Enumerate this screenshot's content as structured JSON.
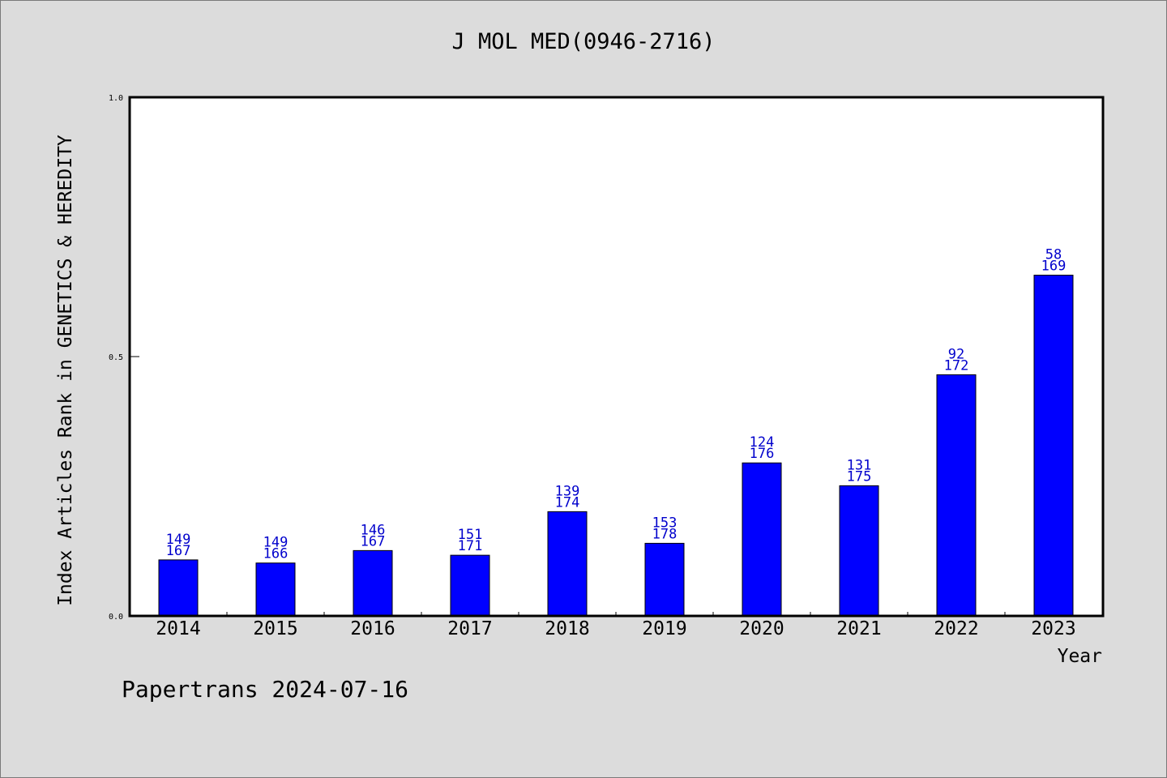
{
  "chart_data": {
    "type": "bar",
    "title": "J MOL MED(0946-2716)",
    "xlabel": "Year",
    "ylabel": "Index Articles Rank in GENETICS & HEREDITY",
    "categories": [
      "2014",
      "2015",
      "2016",
      "2017",
      "2018",
      "2019",
      "2020",
      "2021",
      "2022",
      "2023"
    ],
    "values": [
      0.108,
      0.102,
      0.126,
      0.117,
      0.201,
      0.14,
      0.295,
      0.251,
      0.465,
      0.657
    ],
    "rank_labels": [
      "149",
      "149",
      "146",
      "151",
      "139",
      "153",
      "124",
      "131",
      "92",
      "58"
    ],
    "total_labels": [
      "167",
      "166",
      "167",
      "171",
      "174",
      "178",
      "176",
      "175",
      "172",
      "169"
    ],
    "ylim": [
      0,
      1.0
    ],
    "yticks": [
      "0.0",
      "0.5",
      "1.0"
    ],
    "grid": false,
    "colors": {
      "bar": "#0000ff",
      "data_label": "#0000cc",
      "background": "#dcdcdc",
      "plot_area": "#ffffff"
    }
  },
  "footer": {
    "watermark": "Papertrans 2024-07-16"
  }
}
